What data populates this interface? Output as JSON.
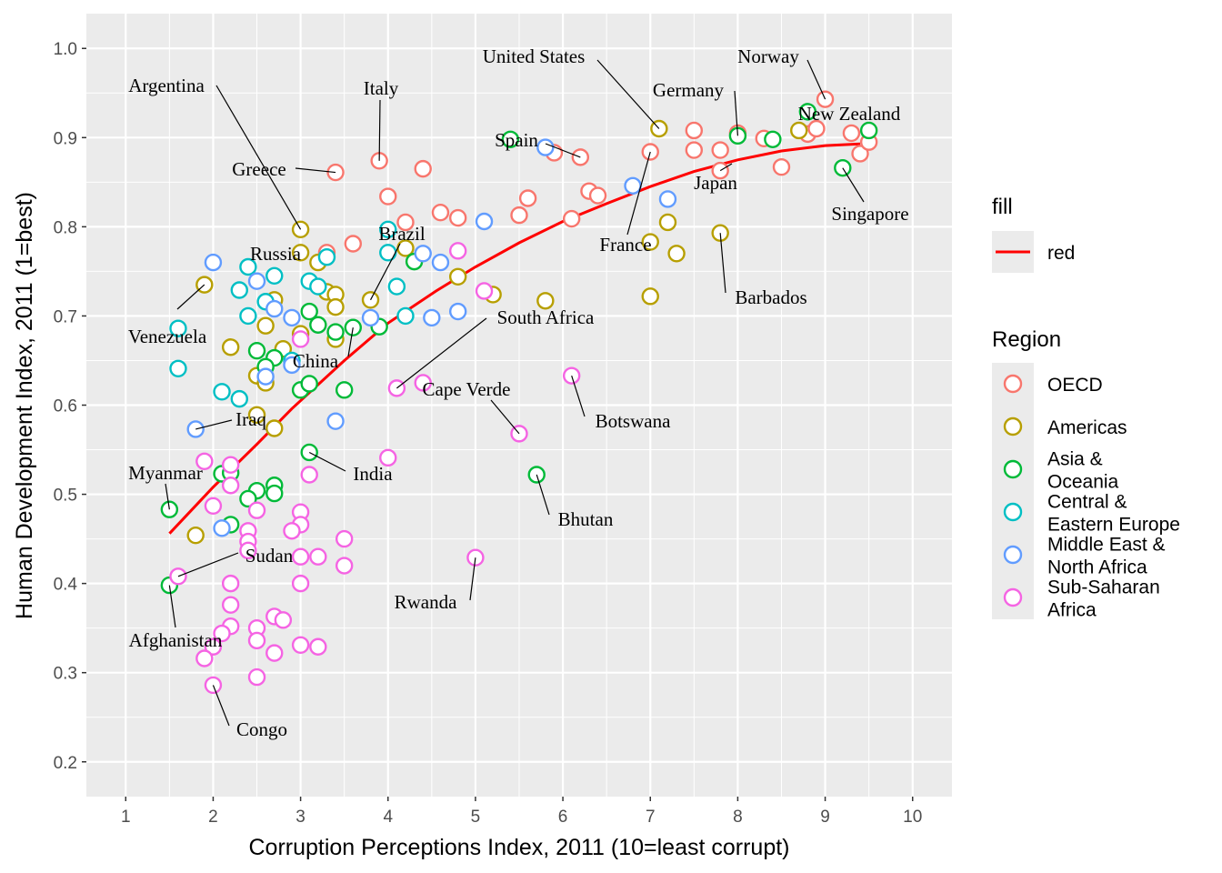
{
  "chart_data": {
    "type": "scatter",
    "xlabel": "Corruption Perceptions Index, 2011 (10=least corrupt)",
    "ylabel": "Human Development Index, 2011 (1=best)",
    "xlim": [
      0.55,
      10.45
    ],
    "ylim": [
      0.161,
      1.039
    ],
    "xticks": [
      "1",
      "2",
      "3",
      "4",
      "5",
      "6",
      "7",
      "8",
      "9",
      "10"
    ],
    "yticks": [
      "0.2",
      "0.3",
      "0.4",
      "0.5",
      "0.6",
      "0.7",
      "0.8",
      "0.9",
      "1.0"
    ],
    "grid": true,
    "legend_position": "right",
    "fill_legend": {
      "title": "fill",
      "label": "red",
      "color": "#FF0000"
    },
    "region_legend": {
      "title": "Region",
      "entries": [
        {
          "key": "O",
          "lines": [
            "OECD"
          ],
          "color": "#F8766D"
        },
        {
          "key": "A",
          "lines": [
            "Americas"
          ],
          "color": "#B79F00"
        },
        {
          "key": "S",
          "lines": [
            "Asia &",
            "Oceania"
          ],
          "color": "#00BA38"
        },
        {
          "key": "C",
          "lines": [
            "Central &",
            "Eastern Europe"
          ],
          "color": "#00BFC4"
        },
        {
          "key": "M",
          "lines": [
            "Middle East &",
            "North Africa"
          ],
          "color": "#619CFF"
        },
        {
          "key": "F",
          "lines": [
            "Sub-Saharan",
            "Africa"
          ],
          "color": "#F564E3"
        }
      ]
    },
    "points": {
      "O": [
        [
          3.4,
          0.861
        ],
        [
          3.9,
          0.874
        ],
        [
          4.4,
          0.865
        ],
        [
          4.0,
          0.834
        ],
        [
          4.2,
          0.805
        ],
        [
          3.6,
          0.781
        ],
        [
          3.3,
          0.771
        ],
        [
          4.6,
          0.816
        ],
        [
          4.8,
          0.81
        ],
        [
          5.5,
          0.813
        ],
        [
          5.6,
          0.832
        ],
        [
          6.1,
          0.809
        ],
        [
          6.3,
          0.84
        ],
        [
          6.4,
          0.835
        ],
        [
          6.2,
          0.878
        ],
        [
          5.9,
          0.883
        ],
        [
          7.0,
          0.884
        ],
        [
          7.5,
          0.908
        ],
        [
          7.5,
          0.886
        ],
        [
          7.8,
          0.886
        ],
        [
          7.8,
          0.863
        ],
        [
          8.0,
          0.905
        ],
        [
          8.3,
          0.899
        ],
        [
          8.5,
          0.867
        ],
        [
          8.8,
          0.904
        ],
        [
          8.9,
          0.91
        ],
        [
          9.0,
          0.943
        ],
        [
          9.3,
          0.905
        ],
        [
          9.4,
          0.882
        ],
        [
          9.5,
          0.895
        ]
      ],
      "A": [
        [
          3.0,
          0.797
        ],
        [
          3.0,
          0.771
        ],
        [
          3.2,
          0.76
        ],
        [
          3.3,
          0.727
        ],
        [
          3.4,
          0.724
        ],
        [
          3.4,
          0.71
        ],
        [
          2.7,
          0.718
        ],
        [
          1.9,
          0.735
        ],
        [
          2.6,
          0.689
        ],
        [
          2.2,
          0.665
        ],
        [
          2.8,
          0.663
        ],
        [
          3.0,
          0.68
        ],
        [
          3.4,
          0.674
        ],
        [
          2.5,
          0.633
        ],
        [
          2.6,
          0.625
        ],
        [
          2.5,
          0.589
        ],
        [
          2.7,
          0.574
        ],
        [
          1.8,
          0.454
        ],
        [
          3.8,
          0.718
        ],
        [
          4.2,
          0.776
        ],
        [
          4.8,
          0.744
        ],
        [
          5.2,
          0.724
        ],
        [
          5.8,
          0.717
        ],
        [
          7.0,
          0.722
        ],
        [
          7.0,
          0.783
        ],
        [
          7.2,
          0.805
        ],
        [
          7.3,
          0.77
        ],
        [
          7.8,
          0.793
        ],
        [
          7.1,
          0.91
        ],
        [
          8.7,
          0.908
        ]
      ],
      "S": [
        [
          5.4,
          0.898
        ],
        [
          8.4,
          0.898
        ],
        [
          8.8,
          0.929
        ],
        [
          9.5,
          0.908
        ],
        [
          9.2,
          0.866
        ],
        [
          8.0,
          0.902
        ],
        [
          4.3,
          0.761
        ],
        [
          3.9,
          0.688
        ],
        [
          3.6,
          0.687
        ],
        [
          3.5,
          0.617
        ],
        [
          3.1,
          0.705
        ],
        [
          3.2,
          0.69
        ],
        [
          3.4,
          0.682
        ],
        [
          3.0,
          0.617
        ],
        [
          3.1,
          0.624
        ],
        [
          2.5,
          0.661
        ],
        [
          2.7,
          0.653
        ],
        [
          2.6,
          0.643
        ],
        [
          3.1,
          0.547
        ],
        [
          2.1,
          0.523
        ],
        [
          2.2,
          0.524
        ],
        [
          2.5,
          0.504
        ],
        [
          2.7,
          0.51
        ],
        [
          2.7,
          0.501
        ],
        [
          2.4,
          0.495
        ],
        [
          2.2,
          0.466
        ],
        [
          1.5,
          0.483
        ],
        [
          1.5,
          0.398
        ],
        [
          5.7,
          0.522
        ]
      ],
      "C": [
        [
          1.6,
          0.686
        ],
        [
          1.6,
          0.641
        ],
        [
          2.1,
          0.615
        ],
        [
          2.3,
          0.607
        ],
        [
          2.3,
          0.729
        ],
        [
          2.4,
          0.755
        ],
        [
          2.4,
          0.7
        ],
        [
          2.6,
          0.716
        ],
        [
          2.7,
          0.745
        ],
        [
          3.1,
          0.739
        ],
        [
          3.2,
          0.733
        ],
        [
          3.3,
          0.766
        ],
        [
          4.0,
          0.797
        ],
        [
          4.0,
          0.771
        ],
        [
          4.1,
          0.733
        ],
        [
          4.2,
          0.7
        ],
        [
          2.9,
          0.65
        ]
      ],
      "M": [
        [
          2.0,
          0.76
        ],
        [
          2.5,
          0.739
        ],
        [
          2.7,
          0.708
        ],
        [
          2.9,
          0.698
        ],
        [
          2.6,
          0.632
        ],
        [
          2.9,
          0.645
        ],
        [
          1.8,
          0.573
        ],
        [
          2.1,
          0.462
        ],
        [
          3.4,
          0.582
        ],
        [
          3.8,
          0.698
        ],
        [
          4.4,
          0.77
        ],
        [
          4.6,
          0.76
        ],
        [
          4.5,
          0.698
        ],
        [
          4.8,
          0.705
        ],
        [
          5.1,
          0.806
        ],
        [
          5.8,
          0.889
        ],
        [
          6.8,
          0.846
        ],
        [
          7.2,
          0.831
        ]
      ],
      "F": [
        [
          3.0,
          0.674
        ],
        [
          4.1,
          0.619
        ],
        [
          4.4,
          0.625
        ],
        [
          4.8,
          0.773
        ],
        [
          5.1,
          0.728
        ],
        [
          5.5,
          0.568
        ],
        [
          6.1,
          0.633
        ],
        [
          4.0,
          0.541
        ],
        [
          5.0,
          0.429
        ],
        [
          1.9,
          0.537
        ],
        [
          2.2,
          0.533
        ],
        [
          2.2,
          0.51
        ],
        [
          2.0,
          0.487
        ],
        [
          2.5,
          0.482
        ],
        [
          3.1,
          0.522
        ],
        [
          3.0,
          0.48
        ],
        [
          3.0,
          0.466
        ],
        [
          2.9,
          0.459
        ],
        [
          2.4,
          0.459
        ],
        [
          2.4,
          0.447
        ],
        [
          2.4,
          0.437
        ],
        [
          3.0,
          0.43
        ],
        [
          3.2,
          0.43
        ],
        [
          3.5,
          0.45
        ],
        [
          3.5,
          0.42
        ],
        [
          1.6,
          0.408
        ],
        [
          2.2,
          0.4
        ],
        [
          2.2,
          0.376
        ],
        [
          3.0,
          0.4
        ],
        [
          2.2,
          0.352
        ],
        [
          2.1,
          0.344
        ],
        [
          2.0,
          0.329
        ],
        [
          1.9,
          0.316
        ],
        [
          2.5,
          0.35
        ],
        [
          2.5,
          0.336
        ],
        [
          2.7,
          0.363
        ],
        [
          2.8,
          0.359
        ],
        [
          2.7,
          0.322
        ],
        [
          3.0,
          0.331
        ],
        [
          3.2,
          0.329
        ],
        [
          2.5,
          0.295
        ],
        [
          2.0,
          0.286
        ]
      ]
    },
    "trend": {
      "x": [
        1.5,
        2,
        2.5,
        2.9,
        3.5,
        4,
        4.55,
        5,
        5.5,
        6,
        6.5,
        7,
        7.5,
        8,
        8.5,
        9,
        9.4
      ],
      "y": [
        0.456,
        0.508,
        0.556,
        0.596,
        0.65,
        0.692,
        0.728,
        0.755,
        0.782,
        0.806,
        0.826,
        0.845,
        0.862,
        0.875,
        0.885,
        0.891,
        0.893
      ]
    },
    "labels": [
      {
        "name": "Argentina",
        "x": 3.0,
        "y": 0.797
      },
      {
        "name": "Italy",
        "x": 3.9,
        "y": 0.874
      },
      {
        "name": "United States",
        "x": 7.1,
        "y": 0.91
      },
      {
        "name": "Norway",
        "x": 9.0,
        "y": 0.943
      },
      {
        "name": "Germany",
        "x": 8.0,
        "y": 0.902
      },
      {
        "name": "New Zealand",
        "x": 9.5,
        "y": 0.908
      },
      {
        "name": "Spain",
        "x": 6.2,
        "y": 0.878
      },
      {
        "name": "Greece",
        "x": 3.4,
        "y": 0.861
      },
      {
        "name": "Japan",
        "x": 7.8,
        "y": 0.863
      },
      {
        "name": "Singapore",
        "x": 9.2,
        "y": 0.866
      },
      {
        "name": "France",
        "x": 7.0,
        "y": 0.884
      },
      {
        "name": "Brazil",
        "x": 3.8,
        "y": 0.718
      },
      {
        "name": "Russia",
        "x": 2.4,
        "y": 0.755
      },
      {
        "name": "Barbados",
        "x": 7.8,
        "y": 0.793
      },
      {
        "name": "South Africa",
        "x": 4.1,
        "y": 0.619
      },
      {
        "name": "Venezuela",
        "x": 1.9,
        "y": 0.735
      },
      {
        "name": "China",
        "x": 3.6,
        "y": 0.687
      },
      {
        "name": "Cape Verde",
        "x": 5.5,
        "y": 0.568
      },
      {
        "name": "Iraq",
        "x": 1.8,
        "y": 0.573
      },
      {
        "name": "Botswana",
        "x": 6.1,
        "y": 0.633
      },
      {
        "name": "Myanmar",
        "x": 1.5,
        "y": 0.483
      },
      {
        "name": "India",
        "x": 3.1,
        "y": 0.547
      },
      {
        "name": "Bhutan",
        "x": 5.7,
        "y": 0.522
      },
      {
        "name": "Sudan",
        "x": 1.6,
        "y": 0.408
      },
      {
        "name": "Rwanda",
        "x": 5.0,
        "y": 0.429
      },
      {
        "name": "Afghanistan",
        "x": 1.5,
        "y": 0.398
      },
      {
        "name": "Congo",
        "x": 2.0,
        "y": 0.286
      }
    ]
  }
}
